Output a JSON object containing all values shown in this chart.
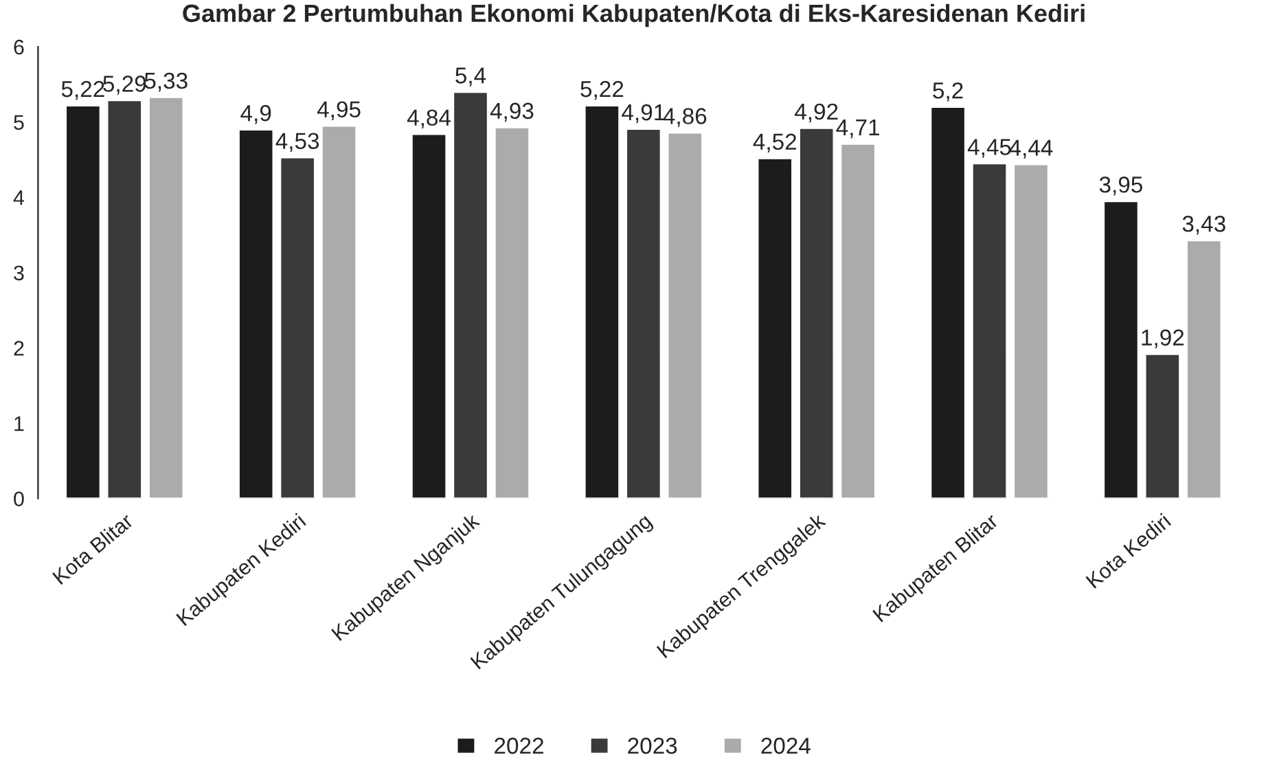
{
  "chart_data": {
    "type": "bar",
    "title": "Gambar 2 Pertumbuhan Ekonomi Kabupaten/Kota di Eks-Karesidenan Kediri",
    "categories": [
      "Kota Blitar",
      "Kabupaten Kediri",
      "Kabupaten Nganjuk",
      "Kabupaten Tulungagung",
      "Kabupaten Trenggalek",
      "Kabupaten Blitar",
      "Kota Kediri"
    ],
    "series": [
      {
        "name": "2022",
        "color": "#1c1c1c",
        "values": [
          5.22,
          4.9,
          4.84,
          5.22,
          4.52,
          5.2,
          3.95
        ],
        "value_labels": [
          "5,22",
          "4,9",
          "4,84",
          "5,22",
          "4,52",
          "5,2",
          "3,95"
        ]
      },
      {
        "name": "2023",
        "color": "#3a3a3a",
        "values": [
          5.29,
          4.53,
          5.4,
          4.91,
          4.92,
          4.45,
          1.92
        ],
        "value_labels": [
          "5,29",
          "4,53",
          "5,4",
          "4,91",
          "4,92",
          "4,45",
          "1,92"
        ]
      },
      {
        "name": "2024",
        "color": "#ababab",
        "values": [
          5.33,
          4.95,
          4.93,
          4.86,
          4.71,
          4.44,
          3.43
        ],
        "value_labels": [
          "5,33",
          "4,95",
          "4,93",
          "4,86",
          "4,71",
          "4,44",
          "3,43"
        ]
      }
    ],
    "ylim": [
      0,
      6
    ],
    "yticks": [
      0,
      1,
      2,
      3,
      4,
      5,
      6
    ],
    "grid": false,
    "legend": "bottom"
  }
}
